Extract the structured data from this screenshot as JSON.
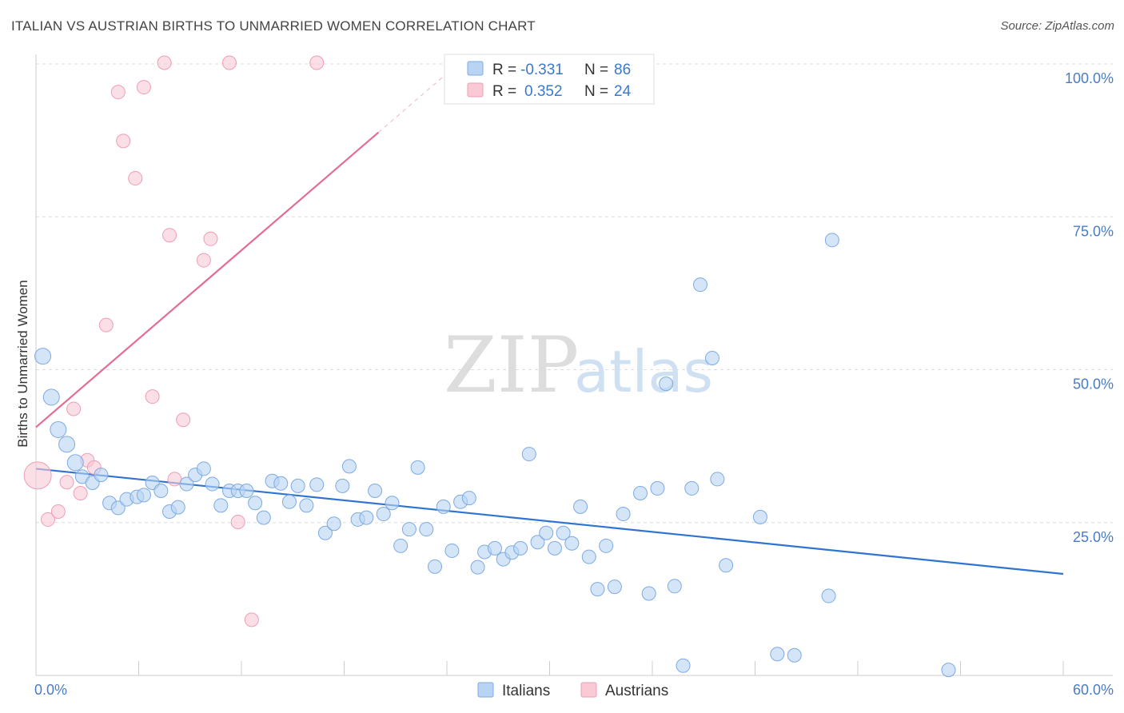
{
  "title": "ITALIAN VS AUSTRIAN BIRTHS TO UNMARRIED WOMEN CORRELATION CHART",
  "source": "Source: ZipAtlas.com",
  "watermark": {
    "zip": "ZIP",
    "atlas": "atlas"
  },
  "colors": {
    "italians_fill": "#b9d3f3",
    "italians_stroke": "#7eaae2",
    "italians_line": "#2f74d0",
    "austrians_fill": "#f9c9d6",
    "austrians_stroke": "#ef9db4",
    "austrians_line": "#e36d93",
    "grid": "#dddddd",
    "tick_text": "#4a7cc4"
  },
  "legend": {
    "r_label": "R =",
    "n_label": "N =",
    "italians": {
      "r": "-0.331",
      "n": "86"
    },
    "austrians": {
      "r": "0.352",
      "n": "24"
    }
  },
  "bottom_legend": [
    "Italians",
    "Austrians"
  ],
  "chart_data": {
    "type": "scatter",
    "title": "ITALIAN VS AUSTRIAN BIRTHS TO UNMARRIED WOMEN CORRELATION CHART",
    "xlabel": "",
    "ylabel": "Births to Unmarried Women",
    "xlim": [
      0,
      60
    ],
    "ylim": [
      0,
      100
    ],
    "x_tick_labels": [
      "0.0%",
      "60.0%"
    ],
    "y_ticks": [
      25,
      50,
      75,
      100
    ],
    "y_tick_labels": [
      "25.0%",
      "50.0%",
      "75.0%",
      "100.0%"
    ],
    "grid": true,
    "legend_position": "top-center",
    "series": [
      {
        "name": "Italians",
        "r": -0.331,
        "n": 86,
        "trend": {
          "x": [
            0,
            60
          ],
          "y": [
            33.8,
            16.6
          ]
        },
        "points": [
          [
            0.4,
            52.2
          ],
          [
            0.9,
            45.5
          ],
          [
            1.3,
            40.2
          ],
          [
            1.8,
            37.8
          ],
          [
            2.3,
            34.8
          ],
          [
            2.7,
            32.5
          ],
          [
            3.3,
            31.5
          ],
          [
            3.8,
            32.8
          ],
          [
            4.3,
            28.2
          ],
          [
            4.8,
            27.4
          ],
          [
            5.3,
            28.8
          ],
          [
            5.9,
            29.2
          ],
          [
            6.3,
            29.5
          ],
          [
            6.8,
            31.5
          ],
          [
            7.3,
            30.2
          ],
          [
            7.8,
            26.8
          ],
          [
            8.3,
            27.5
          ],
          [
            8.8,
            31.3
          ],
          [
            9.3,
            32.8
          ],
          [
            9.8,
            33.8
          ],
          [
            10.3,
            31.3
          ],
          [
            10.8,
            27.8
          ],
          [
            11.3,
            30.2
          ],
          [
            11.8,
            30.2
          ],
          [
            12.3,
            30.2
          ],
          [
            12.8,
            28.2
          ],
          [
            13.3,
            25.8
          ],
          [
            13.8,
            31.8
          ],
          [
            14.3,
            31.4
          ],
          [
            14.8,
            28.4
          ],
          [
            15.3,
            31.0
          ],
          [
            15.8,
            27.8
          ],
          [
            16.4,
            31.2
          ],
          [
            16.9,
            23.3
          ],
          [
            17.4,
            24.8
          ],
          [
            17.9,
            31.0
          ],
          [
            18.3,
            34.2
          ],
          [
            18.8,
            25.5
          ],
          [
            19.3,
            25.8
          ],
          [
            19.8,
            30.2
          ],
          [
            20.3,
            26.4
          ],
          [
            20.8,
            28.2
          ],
          [
            21.3,
            21.2
          ],
          [
            21.8,
            23.9
          ],
          [
            22.3,
            34.0
          ],
          [
            22.8,
            23.9
          ],
          [
            23.3,
            17.8
          ],
          [
            23.8,
            27.6
          ],
          [
            24.3,
            20.4
          ],
          [
            24.8,
            28.4
          ],
          [
            25.3,
            29.0
          ],
          [
            25.8,
            17.7
          ],
          [
            26.2,
            20.2
          ],
          [
            26.8,
            20.8
          ],
          [
            27.3,
            19.0
          ],
          [
            27.8,
            20.1
          ],
          [
            28.3,
            20.8
          ],
          [
            28.8,
            36.2
          ],
          [
            29.3,
            21.8
          ],
          [
            29.8,
            23.3
          ],
          [
            30.3,
            20.8
          ],
          [
            30.8,
            23.3
          ],
          [
            31.3,
            21.6
          ],
          [
            31.8,
            27.6
          ],
          [
            32.3,
            19.4
          ],
          [
            32.8,
            14.1
          ],
          [
            33.3,
            21.2
          ],
          [
            33.8,
            14.5
          ],
          [
            34.3,
            26.4
          ],
          [
            35.3,
            29.8
          ],
          [
            35.8,
            13.4
          ],
          [
            36.3,
            30.6
          ],
          [
            36.8,
            47.7
          ],
          [
            37.3,
            14.6
          ],
          [
            37.8,
            1.6
          ],
          [
            38.3,
            30.6
          ],
          [
            38.8,
            63.9
          ],
          [
            39.5,
            51.9
          ],
          [
            39.8,
            32.1
          ],
          [
            40.3,
            18.0
          ],
          [
            42.3,
            25.9
          ],
          [
            43.3,
            3.5
          ],
          [
            44.3,
            3.3
          ],
          [
            46.3,
            13.0
          ],
          [
            46.5,
            71.2
          ],
          [
            53.3,
            0.9
          ]
        ]
      },
      {
        "name": "Austrians",
        "r": 0.352,
        "n": 24,
        "trend": {
          "x": [
            0,
            20
          ],
          "y": [
            40.6,
            88.8
          ]
        },
        "points": [
          [
            0.1,
            32.7
          ],
          [
            0.7,
            25.5
          ],
          [
            1.3,
            26.8
          ],
          [
            1.8,
            31.6
          ],
          [
            2.2,
            43.6
          ],
          [
            2.6,
            29.8
          ],
          [
            3.0,
            35.2
          ],
          [
            3.4,
            34.0
          ],
          [
            4.1,
            57.3
          ],
          [
            4.8,
            95.4
          ],
          [
            5.1,
            87.4
          ],
          [
            5.8,
            81.3
          ],
          [
            6.3,
            96.2
          ],
          [
            6.8,
            45.6
          ],
          [
            7.5,
            100.2
          ],
          [
            7.8,
            72.0
          ],
          [
            8.1,
            32.1
          ],
          [
            8.6,
            41.8
          ],
          [
            9.8,
            67.9
          ],
          [
            10.2,
            71.4
          ],
          [
            11.3,
            100.2
          ],
          [
            11.8,
            25.1
          ],
          [
            12.6,
            9.1
          ],
          [
            16.4,
            100.2
          ]
        ]
      }
    ]
  }
}
